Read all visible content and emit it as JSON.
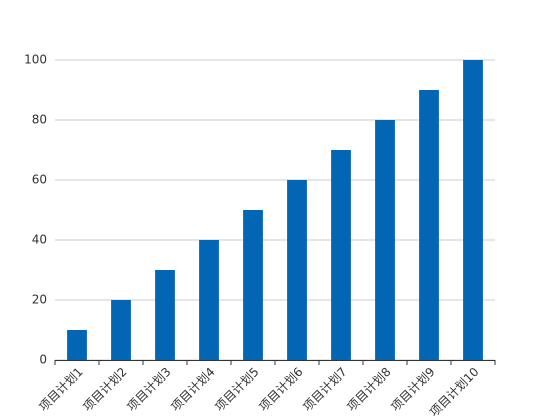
{
  "chart_data": {
    "type": "bar",
    "categories": [
      "项目计划1",
      "项目计划2",
      "项目计划3",
      "项目计划4",
      "项目计划5",
      "项目计划6",
      "项目计划7",
      "项目计划8",
      "项目计划9",
      "项目计划10"
    ],
    "values": [
      10,
      20,
      30,
      40,
      50,
      60,
      70,
      80,
      90,
      100
    ],
    "color": "#0266b4",
    "ylim": [
      0,
      100
    ],
    "yticks": [
      0,
      20,
      40,
      60,
      80,
      100
    ],
    "grid": true
  }
}
